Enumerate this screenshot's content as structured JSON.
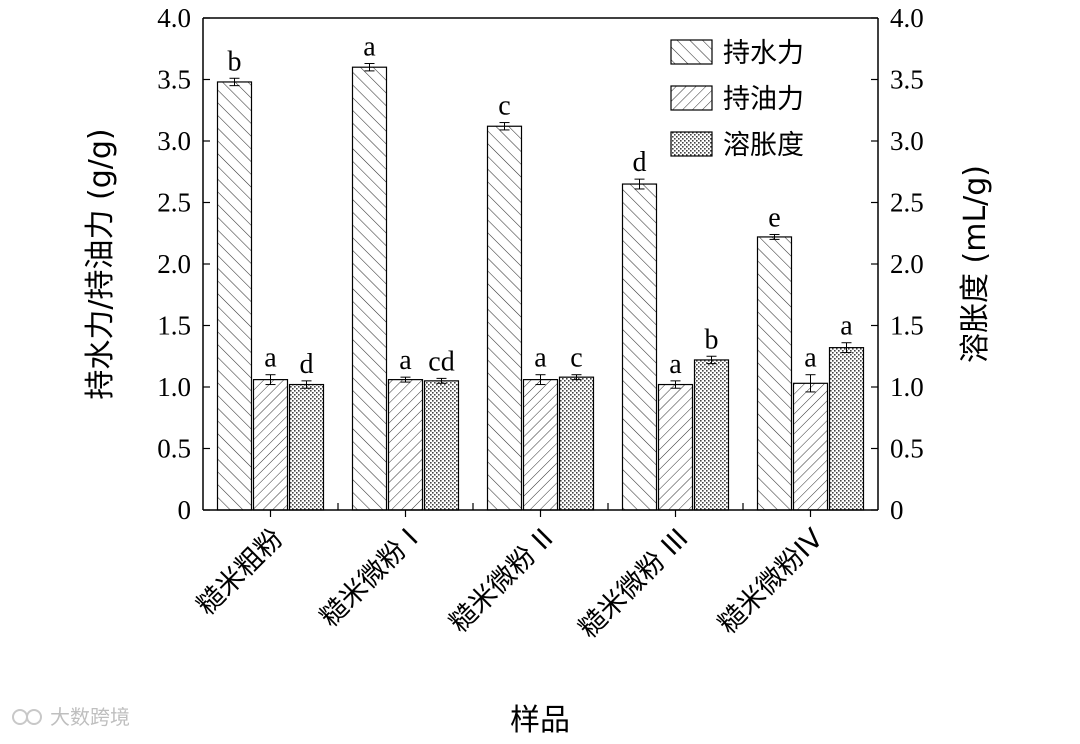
{
  "chart_data": {
    "type": "bar",
    "xlabel": "样品",
    "ylabel_left": "持水力/持油力 (g/g)",
    "ylabel_right": "溶胀度 (mL/g)",
    "ylim": [
      0,
      4.0
    ],
    "yticks": [
      "0",
      "0.5",
      "1.0",
      "1.5",
      "2.0",
      "2.5",
      "3.0",
      "3.5",
      "4.0"
    ],
    "categories": [
      "糙米粗粉",
      "糙米微粉 I",
      "糙米微粉 II",
      "糙米微粉 III",
      "糙米微粉IV"
    ],
    "series": [
      {
        "name": "持水力",
        "values": [
          3.48,
          3.6,
          3.12,
          2.65,
          2.22
        ],
        "errors": [
          0.03,
          0.03,
          0.03,
          0.04,
          0.02
        ],
        "labels": [
          "b",
          "a",
          "c",
          "d",
          "e"
        ],
        "pattern": "forward-diagonal"
      },
      {
        "name": "持油力",
        "values": [
          1.06,
          1.06,
          1.06,
          1.02,
          1.03
        ],
        "errors": [
          0.04,
          0.02,
          0.04,
          0.03,
          0.07
        ],
        "labels": [
          "a",
          "a",
          "a",
          "a",
          "a"
        ],
        "pattern": "back-diagonal"
      },
      {
        "name": "溶胀度",
        "values": [
          1.02,
          1.05,
          1.08,
          1.22,
          1.32
        ],
        "errors": [
          0.03,
          0.02,
          0.02,
          0.03,
          0.04
        ],
        "labels": [
          "d",
          "cd",
          "c",
          "b",
          "a"
        ],
        "pattern": "dots"
      }
    ],
    "legend_position": "top-right",
    "grid": false
  },
  "watermark": "大数跨境"
}
